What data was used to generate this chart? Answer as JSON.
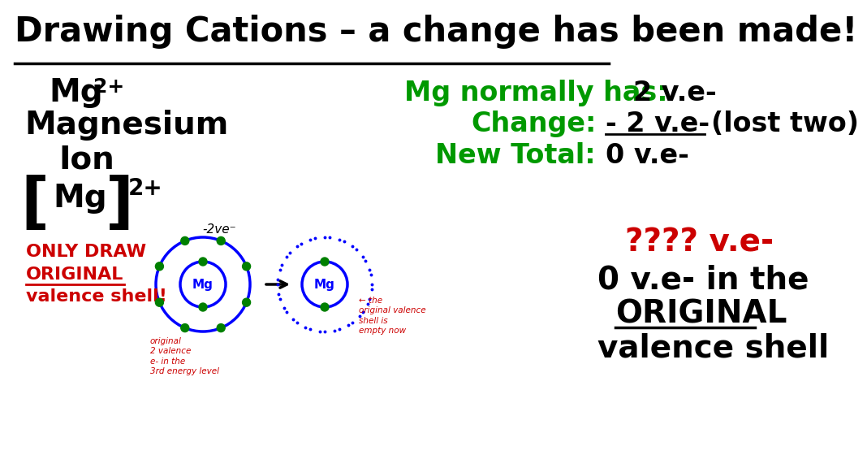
{
  "title": "Drawing Cations – a change has been made!",
  "title_color": "#000000",
  "bg_color": "#ffffff",
  "left_col": {
    "mg_ion": "Mg",
    "mg_superscript": "2+",
    "only_draw_color": "#cc0000"
  },
  "right_top": {
    "line1_label": "Mg normally has:",
    "line1_value": "2 v.e-",
    "line2_label": "Change:",
    "line2_value": "- 2 v.e-",
    "line2_suffix": "(lost two)",
    "line3_label": "New Total:",
    "line3_value": "0 v.e-",
    "green_color": "#009900",
    "black_color": "#000000"
  },
  "right_bottom": {
    "question_text": "???? v.e-",
    "question_color": "#cc0000",
    "answer_line1": "0 v.e- in the",
    "answer_line2": "ORIGINAL",
    "answer_line3": "valence shell",
    "answer_color": "#000000"
  }
}
